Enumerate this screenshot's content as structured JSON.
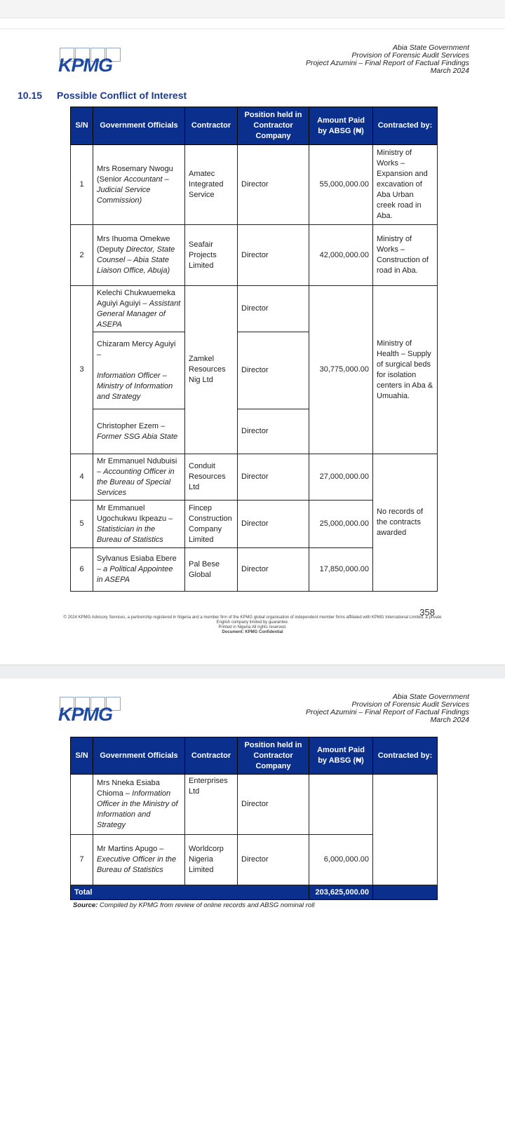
{
  "header": {
    "lines": [
      "Abia State Government",
      "Provision of Forensic Audit Services",
      "Project Azumini – Final Report of Factual Findings",
      "March 2024"
    ],
    "logo": "KPMG"
  },
  "section": {
    "number": "10.15",
    "title": "Possible Conflict of Interest"
  },
  "table": {
    "columns": [
      "S/N",
      "Government Officials",
      "Contractor",
      "Position held in Contractor Company",
      "Amount Paid by ABSG (₦)",
      "Contracted by:"
    ],
    "rows": [
      {
        "sn": "1",
        "name": "Mrs Rosemary Nwogu (Senior",
        "role": "Accountant – Judicial Service Commission)",
        "contractor": "Amatec Integrated Service",
        "position": "Director",
        "amount": "55,000,000.00",
        "contracted_by": "Ministry of Works – Expansion and excavation of Aba Urban creek road in Aba."
      },
      {
        "sn": "2",
        "name": "Mrs Ihuoma Omekwe (Deputy",
        "role": "Director, State Counsel – Abia State Liaison Office, Abuja)",
        "contractor": "Seafair Projects Limited",
        "position": "Director",
        "amount": "42,000,000.00",
        "contracted_by": "Ministry of Works – Construction of road in Aba."
      },
      {
        "sn": "3",
        "contractor": "Zamkel Resources Nig Ltd",
        "amount": "30,775,000.00",
        "contracted_by": "Ministry of Health – Supply of surgical beds for isolation centers in Aba & Umuahia.",
        "officials": [
          {
            "name": "Kelechi Chukwuemeka Aguiyi Aguiyi –",
            "role": "Assistant General Manager of ASEPA",
            "position": "Director"
          },
          {
            "name": "Chizaram Mercy Aguiyi –",
            "role": "Information Officer – Ministry of Information and Strategy",
            "position": "Director"
          },
          {
            "name": "Christopher Ezem –",
            "role": "Former SSG Abia State",
            "position": "Director"
          }
        ]
      },
      {
        "sn": "4",
        "name": "Mr Emmanuel Ndubuisi –",
        "role": "Accounting Officer in the Bureau of Special Services",
        "contractor": "Conduit Resources Ltd",
        "position": "Director",
        "amount": "27,000,000.00",
        "contracted_by": "No records of the contracts awarded"
      },
      {
        "sn": "5",
        "name": "Mr Emmanuel Ugochukwu Ikpeazu –",
        "role": "Statistician in the Bureau of Statistics",
        "contractor": "Fincep Construction Company Limited",
        "position": "Director",
        "amount": "25,000,000.00"
      },
      {
        "sn": "6",
        "name": "Sylvanus Esiaba Ebere",
        "role": "– a Political Appointee in ASEPA",
        "contractor": "Pal Bese Global",
        "position": "Director",
        "amount": "17,850,000.00"
      }
    ],
    "continued_rows": [
      {
        "sn": "",
        "name": "Mrs Nneka Esiaba Chioma –",
        "role": "Information Officer in the Ministry of Information and Strategy",
        "contractor": "Enterprises Ltd",
        "position": "Director",
        "amount": ""
      },
      {
        "sn": "7",
        "name": "Mr Martins Apugo –",
        "role": "Executive Officer in the Bureau of Statistics",
        "contractor": "Worldcorp Nigeria Limited",
        "position": "Director",
        "amount": "6,000,000.00"
      }
    ],
    "total_label": "Total",
    "total_amount": "203,625,000.00"
  },
  "source": {
    "label": "Source:",
    "text": "Compiled by KPMG from review of online records and ABSG nominal roll"
  },
  "footer": {
    "page_number": "358",
    "copyright": "© 2024 KPMG Advisory Services, a partnership registered in Nigeria and a member firm of the KPMG global organisation of independent member firms affiliated with KPMG International Limited, a private English company limited by guarantee.",
    "rights": "Printed in Nigeria All rights reserved.",
    "classification": "Document: KPMG Confidential"
  }
}
